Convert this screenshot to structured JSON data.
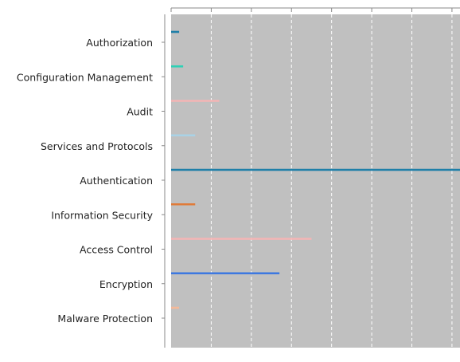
{
  "chart_data": {
    "type": "bar",
    "orientation": "horizontal",
    "categories": [
      "Authorization",
      "Configuration Management",
      "Audit",
      "Services and Protocols",
      "Authentication",
      "Information Security",
      "Access Control",
      "Encryption",
      "Malware Protection"
    ],
    "values": [
      0.2,
      0.3,
      1.2,
      0.6,
      7.3,
      0.6,
      3.5,
      2.7,
      0.2
    ],
    "colors": [
      "#1f7fa8",
      "#2ed1b5",
      "#f4b5b5",
      "#a9d2e6",
      "#1f7fa8",
      "#e07b39",
      "#f4b5b5",
      "#3d78e0",
      "#f5b998"
    ],
    "xlim": [
      0,
      7.2
    ],
    "x_ticks": [
      0,
      1,
      2,
      3,
      4,
      5,
      6,
      7
    ],
    "grid": true,
    "plot_background": "#c0c0c0",
    "gridline_color": "#ffffff",
    "title": "",
    "xlabel": "",
    "ylabel": ""
  }
}
